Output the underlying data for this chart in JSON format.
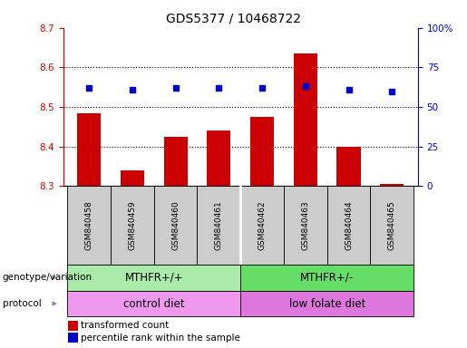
{
  "title": "GDS5377 / 10468722",
  "samples": [
    "GSM840458",
    "GSM840459",
    "GSM840460",
    "GSM840461",
    "GSM840462",
    "GSM840463",
    "GSM840464",
    "GSM840465"
  ],
  "transformed_count": [
    8.485,
    8.34,
    8.425,
    8.44,
    8.475,
    8.635,
    8.4,
    8.305
  ],
  "percentile_rank": [
    62,
    61,
    62,
    62,
    62,
    63,
    61,
    60
  ],
  "ylim_left": [
    8.3,
    8.7
  ],
  "ylim_right": [
    0,
    100
  ],
  "yticks_left": [
    8.3,
    8.4,
    8.5,
    8.6,
    8.7
  ],
  "yticks_right": [
    0,
    25,
    50,
    75,
    100
  ],
  "yticklabels_right": [
    "0",
    "25",
    "50",
    "75",
    "100%"
  ],
  "bar_color": "#cc0000",
  "dot_color": "#0000cc",
  "bar_width": 0.55,
  "genotype_groups": [
    {
      "label": "MTHFR+/+",
      "start": 0,
      "end": 4,
      "color": "#aaeaaa"
    },
    {
      "label": "MTHFR+/-",
      "start": 4,
      "end": 8,
      "color": "#66dd66"
    }
  ],
  "protocol_groups": [
    {
      "label": "control diet",
      "start": 0,
      "end": 4,
      "color": "#ee99ee"
    },
    {
      "label": "low folate diet",
      "start": 4,
      "end": 8,
      "color": "#dd77dd"
    }
  ],
  "legend_items": [
    {
      "label": "transformed count",
      "color": "#cc0000"
    },
    {
      "label": "percentile rank within the sample",
      "color": "#0000cc"
    }
  ],
  "genotype_label": "genotype/variation",
  "protocol_label": "protocol",
  "label_arrow_color": "#888888",
  "grid_color": "black",
  "grid_linestyle": "dotted",
  "tick_label_color_left": "#cc0000",
  "tick_label_color_right": "#0000cc",
  "sample_box_color": "#cccccc",
  "title_fontsize": 10
}
